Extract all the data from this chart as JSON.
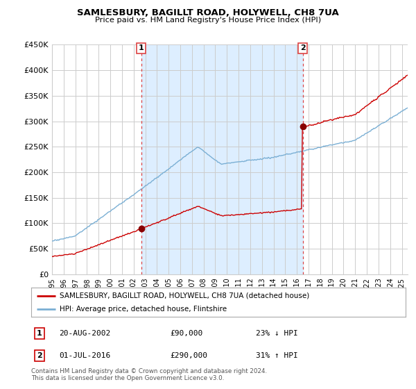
{
  "title": "SAMLESBURY, BAGILLT ROAD, HOLYWELL, CH8 7UA",
  "subtitle": "Price paid vs. HM Land Registry's House Price Index (HPI)",
  "legend_line1": "SAMLESBURY, BAGILLT ROAD, HOLYWELL, CH8 7UA (detached house)",
  "legend_line2": "HPI: Average price, detached house, Flintshire",
  "sale1_date": "20-AUG-2002",
  "sale1_price": "£90,000",
  "sale1_hpi": "23% ↓ HPI",
  "sale2_date": "01-JUL-2016",
  "sale2_price": "£290,000",
  "sale2_hpi": "31% ↑ HPI",
  "footer": "Contains HM Land Registry data © Crown copyright and database right 2024.\nThis data is licensed under the Open Government Licence v3.0.",
  "house_color": "#cc0000",
  "hpi_color": "#7aafd4",
  "shade_color": "#ddeeff",
  "sale_marker_color": "#880000",
  "vline_color": "#dd4444",
  "ylim": [
    0,
    450000
  ],
  "yticks": [
    0,
    50000,
    100000,
    150000,
    200000,
    250000,
    300000,
    350000,
    400000,
    450000
  ],
  "ytick_labels": [
    "£0",
    "£50K",
    "£100K",
    "£150K",
    "£200K",
    "£250K",
    "£300K",
    "£350K",
    "£400K",
    "£450K"
  ],
  "sale1_year": 2002.64,
  "sale1_value": 90000,
  "sale2_year": 2016.5,
  "sale2_value": 290000,
  "xlim_start": 1995,
  "xlim_end": 2025.5,
  "background_color": "#ffffff",
  "grid_color": "#cccccc"
}
